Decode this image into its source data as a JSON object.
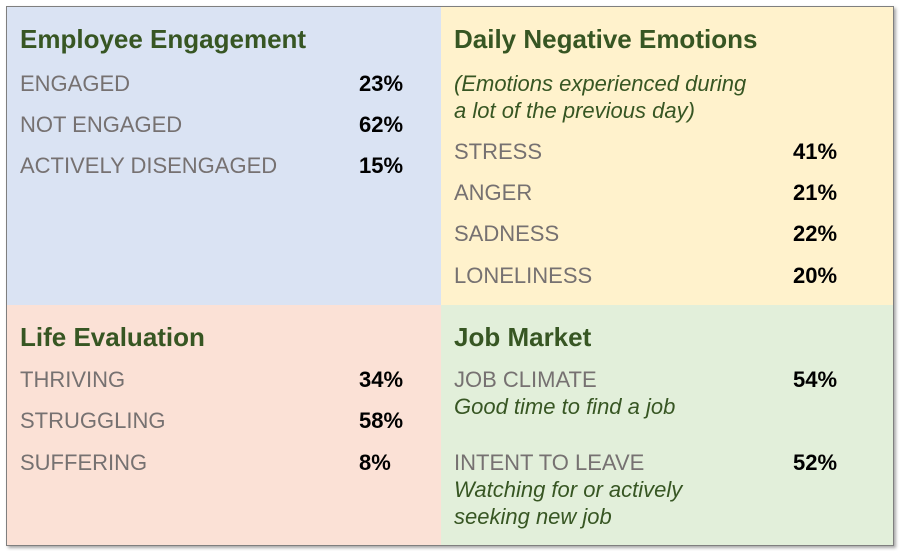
{
  "engagement": {
    "title": "Employee Engagement",
    "rows": [
      {
        "label": "ENGAGED",
        "value": "23%"
      },
      {
        "label": "NOT ENGAGED",
        "value": "62%"
      },
      {
        "label": "ACTIVELY DISENGAGED",
        "value": "15%"
      }
    ],
    "colors": {
      "background": "#dae3f3",
      "title": "#375623",
      "label": "#767171"
    }
  },
  "emotions": {
    "title": "Daily Negative Emotions",
    "subtitle_line1": "(Emotions experienced during",
    "subtitle_line2": "a lot of the previous day)",
    "rows": [
      {
        "label": "STRESS",
        "value": "41%"
      },
      {
        "label": "ANGER",
        "value": "21%"
      },
      {
        "label": "SADNESS",
        "value": "22%"
      },
      {
        "label": "LONELINESS",
        "value": "20%"
      }
    ],
    "colors": {
      "background": "#fff2cc"
    }
  },
  "life": {
    "title": "Life Evaluation",
    "rows": [
      {
        "label": "THRIVING",
        "value": "34%"
      },
      {
        "label": "STRUGGLING",
        "value": "58%"
      },
      {
        "label": "SUFFERING",
        "value": "8%"
      }
    ],
    "colors": {
      "background": "#fbe1d6"
    }
  },
  "job": {
    "title": "Job Market",
    "climate": {
      "label": "JOB CLIMATE",
      "value": "54%",
      "note": "Good time to find a job"
    },
    "intent": {
      "label": "INTENT TO LEAVE",
      "value": "52%",
      "note_line1": "Watching for or actively",
      "note_line2": "seeking new job"
    },
    "colors": {
      "background": "#e2efda"
    }
  }
}
